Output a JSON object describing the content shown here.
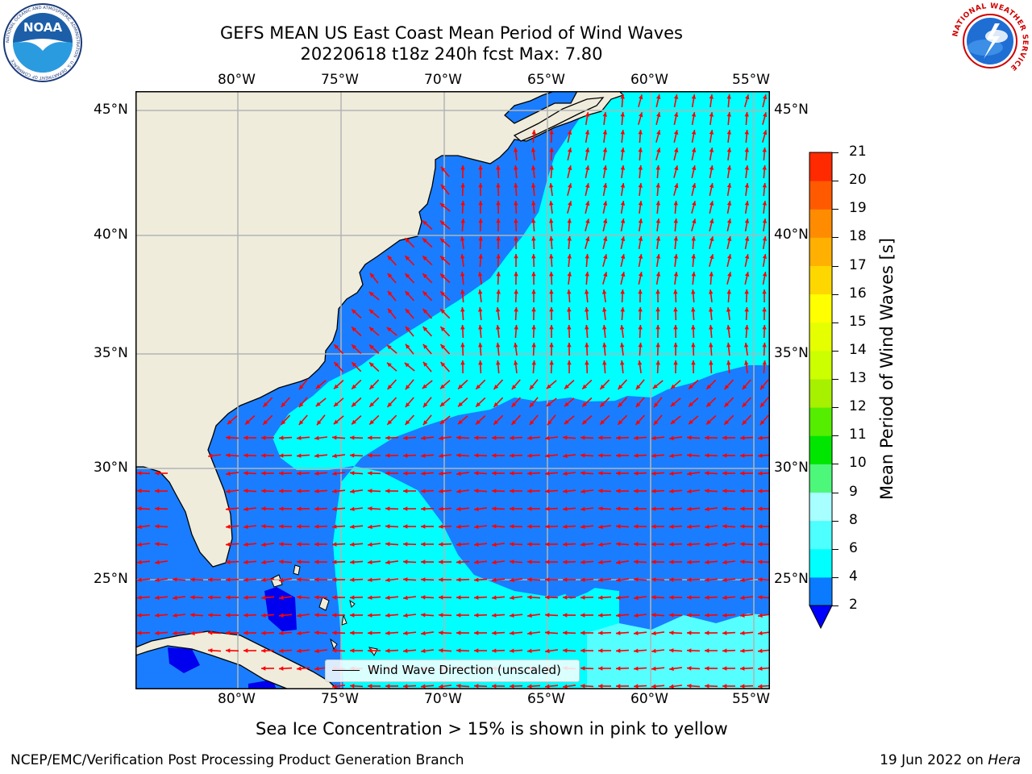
{
  "title": {
    "line1": "GEFS MEAN US East Coast Mean Period of Wind Waves",
    "line2": "20220618 t18z 240h fcst   Max: 7.80"
  },
  "map": {
    "lon_labels": [
      "80°W",
      "75°W",
      "70°W",
      "65°W",
      "60°W",
      "55°W"
    ],
    "lat_labels": [
      "45°N",
      "40°N",
      "35°N",
      "30°N",
      "25°N"
    ],
    "colors": {
      "land": "#efecdc",
      "ocean_2_4": "#1a7dff",
      "ocean_4_6": "#00ffff",
      "ocean_6_8": "#55ffff",
      "ocean_lt2": "#0000ee",
      "arrows": "#ff0000",
      "grid": "#b3b3b3"
    },
    "legend_label": "Wind Wave Direction (unscaled)"
  },
  "colorbar": {
    "label": "Mean Period of Wind Waves [s]",
    "ticks": [
      "2",
      "4",
      "6",
      "8",
      "9",
      "10",
      "11",
      "12",
      "13",
      "14",
      "15",
      "16",
      "17",
      "18",
      "19",
      "20",
      "21"
    ],
    "colors": [
      "#0a7bff",
      "#00ffff",
      "#4dffff",
      "#a8ffff",
      "#4df77a",
      "#00e600",
      "#55ee00",
      "#a6f000",
      "#ccff00",
      "#e6ff00",
      "#ffff00",
      "#ffd700",
      "#ffb000",
      "#ff8c00",
      "#ff5a00",
      "#ff2a00"
    ],
    "under_color": "#0000ff"
  },
  "subtitle": "Sea Ice Concentration > 15% is shown in pink to yellow",
  "footer": {
    "left": "NCEP/EMC/Verification Post Processing Product Generation Branch",
    "right_prefix": "19 Jun 2022 on ",
    "right_host": "Hera"
  },
  "logos": {
    "left": "NOAA",
    "left_ring": "NATIONAL OCEANIC AND ATMOSPHERIC ADMINISTRATION · U.S. DEPARTMENT OF COMMERCE",
    "right_ring": "NATIONAL WEATHER SERVICE"
  }
}
